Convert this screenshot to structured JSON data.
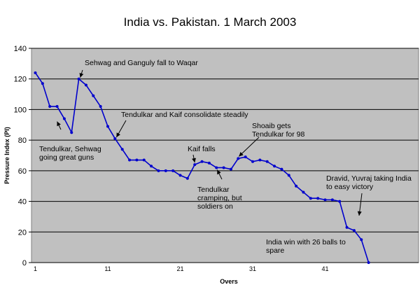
{
  "chart_data": {
    "type": "line",
    "title": "India vs. Pakistan. 1 March 2003",
    "xlabel": "Overs",
    "ylabel": "Pressure Index (PI)",
    "ylim": [
      0,
      140
    ],
    "yticks": [
      0,
      20,
      40,
      60,
      80,
      100,
      120,
      140
    ],
    "xticks": [
      1,
      11,
      21,
      31,
      41
    ],
    "xlim": [
      1,
      51
    ],
    "grid": "horizontal",
    "background": "#c0c0c0",
    "line_color": "#0000cc",
    "series": [
      {
        "x": [
          1,
          2,
          3,
          4,
          5,
          6,
          7,
          8,
          9,
          10,
          11,
          12,
          13,
          14,
          15,
          16,
          17,
          18,
          19,
          20,
          21,
          22,
          23,
          24,
          25,
          26,
          27,
          28,
          29,
          30,
          31,
          32,
          33,
          34,
          35,
          36,
          37,
          38,
          39,
          40,
          41,
          42,
          43,
          44,
          45,
          46,
          47
        ],
        "values": [
          124,
          117,
          102,
          102,
          94,
          85,
          120,
          116,
          109,
          102,
          89,
          81,
          74,
          67,
          67,
          67,
          63,
          60,
          60,
          60,
          57,
          55,
          64,
          66,
          65,
          62,
          62,
          61,
          68,
          69,
          66,
          67,
          66,
          63,
          61,
          57,
          50,
          46,
          42,
          42,
          41,
          41,
          40,
          23,
          21,
          15,
          0
        ]
      }
    ],
    "annotations": [
      {
        "text": [
          "Sehwag and Ganguly fall to Waqar"
        ],
        "target": [
          7,
          120
        ]
      },
      {
        "text": [
          "Tendulkar, Sehwag",
          "going great guns"
        ],
        "target": [
          4,
          94
        ]
      },
      {
        "text": [
          "Tendulkar and Kaif consolidate steadily"
        ],
        "target": [
          12,
          81
        ]
      },
      {
        "text": [
          "Kaif falls"
        ],
        "target": [
          23,
          64
        ]
      },
      {
        "text": [
          "Tendulkar",
          "cramping, but",
          "soldiers on"
        ],
        "target": [
          26,
          62
        ]
      },
      {
        "text": [
          "Shoaib gets",
          "Tendulkar for 98"
        ],
        "target": [
          29,
          68
        ]
      },
      {
        "text": [
          "Dravid, Yuvraj taking India",
          "to easy victory"
        ],
        "target": [
          44,
          30
        ]
      },
      {
        "text": [
          "India win with 26 balls to",
          "spare"
        ],
        "target": null
      }
    ]
  }
}
